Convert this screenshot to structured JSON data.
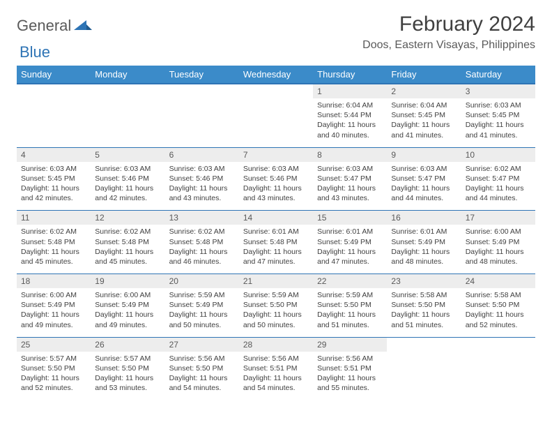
{
  "logo": {
    "general": "General",
    "blue": "Blue"
  },
  "title": "February 2024",
  "location": "Doos, Eastern Visayas, Philippines",
  "colors": {
    "header_bg": "#3b8bc9",
    "header_border": "#2e74b5",
    "daynum_bg": "#ededed",
    "text": "#404040",
    "subtext": "#595959"
  },
  "weekdays": [
    "Sunday",
    "Monday",
    "Tuesday",
    "Wednesday",
    "Thursday",
    "Friday",
    "Saturday"
  ],
  "weeks": [
    [
      null,
      null,
      null,
      null,
      {
        "n": "1",
        "sr": "6:04 AM",
        "ss": "5:44 PM",
        "dl": "11 hours and 40 minutes."
      },
      {
        "n": "2",
        "sr": "6:04 AM",
        "ss": "5:45 PM",
        "dl": "11 hours and 41 minutes."
      },
      {
        "n": "3",
        "sr": "6:03 AM",
        "ss": "5:45 PM",
        "dl": "11 hours and 41 minutes."
      }
    ],
    [
      {
        "n": "4",
        "sr": "6:03 AM",
        "ss": "5:45 PM",
        "dl": "11 hours and 42 minutes."
      },
      {
        "n": "5",
        "sr": "6:03 AM",
        "ss": "5:46 PM",
        "dl": "11 hours and 42 minutes."
      },
      {
        "n": "6",
        "sr": "6:03 AM",
        "ss": "5:46 PM",
        "dl": "11 hours and 43 minutes."
      },
      {
        "n": "7",
        "sr": "6:03 AM",
        "ss": "5:46 PM",
        "dl": "11 hours and 43 minutes."
      },
      {
        "n": "8",
        "sr": "6:03 AM",
        "ss": "5:47 PM",
        "dl": "11 hours and 43 minutes."
      },
      {
        "n": "9",
        "sr": "6:03 AM",
        "ss": "5:47 PM",
        "dl": "11 hours and 44 minutes."
      },
      {
        "n": "10",
        "sr": "6:02 AM",
        "ss": "5:47 PM",
        "dl": "11 hours and 44 minutes."
      }
    ],
    [
      {
        "n": "11",
        "sr": "6:02 AM",
        "ss": "5:48 PM",
        "dl": "11 hours and 45 minutes."
      },
      {
        "n": "12",
        "sr": "6:02 AM",
        "ss": "5:48 PM",
        "dl": "11 hours and 45 minutes."
      },
      {
        "n": "13",
        "sr": "6:02 AM",
        "ss": "5:48 PM",
        "dl": "11 hours and 46 minutes."
      },
      {
        "n": "14",
        "sr": "6:01 AM",
        "ss": "5:48 PM",
        "dl": "11 hours and 47 minutes."
      },
      {
        "n": "15",
        "sr": "6:01 AM",
        "ss": "5:49 PM",
        "dl": "11 hours and 47 minutes."
      },
      {
        "n": "16",
        "sr": "6:01 AM",
        "ss": "5:49 PM",
        "dl": "11 hours and 48 minutes."
      },
      {
        "n": "17",
        "sr": "6:00 AM",
        "ss": "5:49 PM",
        "dl": "11 hours and 48 minutes."
      }
    ],
    [
      {
        "n": "18",
        "sr": "6:00 AM",
        "ss": "5:49 PM",
        "dl": "11 hours and 49 minutes."
      },
      {
        "n": "19",
        "sr": "6:00 AM",
        "ss": "5:49 PM",
        "dl": "11 hours and 49 minutes."
      },
      {
        "n": "20",
        "sr": "5:59 AM",
        "ss": "5:49 PM",
        "dl": "11 hours and 50 minutes."
      },
      {
        "n": "21",
        "sr": "5:59 AM",
        "ss": "5:50 PM",
        "dl": "11 hours and 50 minutes."
      },
      {
        "n": "22",
        "sr": "5:59 AM",
        "ss": "5:50 PM",
        "dl": "11 hours and 51 minutes."
      },
      {
        "n": "23",
        "sr": "5:58 AM",
        "ss": "5:50 PM",
        "dl": "11 hours and 51 minutes."
      },
      {
        "n": "24",
        "sr": "5:58 AM",
        "ss": "5:50 PM",
        "dl": "11 hours and 52 minutes."
      }
    ],
    [
      {
        "n": "25",
        "sr": "5:57 AM",
        "ss": "5:50 PM",
        "dl": "11 hours and 52 minutes."
      },
      {
        "n": "26",
        "sr": "5:57 AM",
        "ss": "5:50 PM",
        "dl": "11 hours and 53 minutes."
      },
      {
        "n": "27",
        "sr": "5:56 AM",
        "ss": "5:50 PM",
        "dl": "11 hours and 54 minutes."
      },
      {
        "n": "28",
        "sr": "5:56 AM",
        "ss": "5:51 PM",
        "dl": "11 hours and 54 minutes."
      },
      {
        "n": "29",
        "sr": "5:56 AM",
        "ss": "5:51 PM",
        "dl": "11 hours and 55 minutes."
      },
      null,
      null
    ]
  ],
  "labels": {
    "sunrise": "Sunrise: ",
    "sunset": "Sunset: ",
    "daylight": "Daylight: "
  }
}
